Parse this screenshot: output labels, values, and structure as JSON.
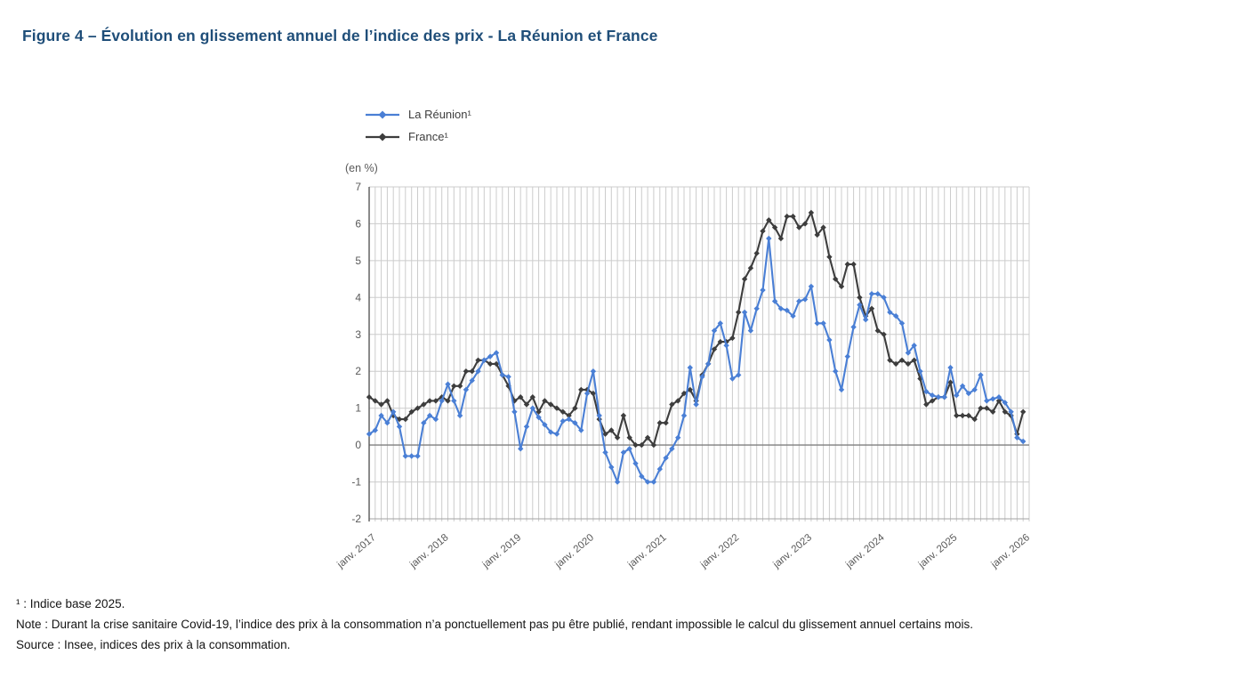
{
  "title": "Figure 4 – Évolution en glissement annuel de l’indice des prix - La Réunion et France",
  "unit_label": "(en %)",
  "legend": [
    {
      "label": "La Réunion¹",
      "color": "#4a7fd5"
    },
    {
      "label": "France¹",
      "color": "#3d3d3d"
    }
  ],
  "colors": {
    "title": "#1f4e79",
    "grid": "#cccccc",
    "zero_line": "#7f7f7f",
    "axis": "#595959",
    "tick_text": "#595959"
  },
  "footnotes": {
    "base": "¹ : Indice base 2025.",
    "note": "Note : Durant la crise sanitaire Covid-19, l’indice des prix à la consommation n’a ponctuellement pas pu être publié, rendant impossible le calcul du glissement annuel certains mois.",
    "source": "Source : Insee, indices des prix à la consommation."
  },
  "chart_data": {
    "type": "line",
    "title": "Évolution en glissement annuel de l'indice des prix - La Réunion et France",
    "ylabel": "(en %)",
    "ylim": [
      -2,
      7
    ],
    "yticks": [
      7,
      6,
      5,
      4,
      3,
      2,
      1,
      0,
      -1,
      -2
    ],
    "x_start": "janv. 2017",
    "x_end": "janv. 2026",
    "frequency": "monthly",
    "grid": "vertical line every month, horizontal line every 1 point, zero line emphasized",
    "legend_position": "top-left above plot",
    "marker": "diamond",
    "xtick_labels": [
      "janv. 2017",
      "janv. 2018",
      "janv. 2019",
      "janv. 2020",
      "janv. 2021",
      "janv. 2022",
      "janv. 2023",
      "janv. 2024",
      "janv. 2025",
      "janv. 2026"
    ],
    "series": [
      {
        "name": "La Réunion¹",
        "color": "#4a7fd5",
        "values": [
          0.3,
          0.4,
          0.8,
          0.6,
          0.9,
          0.5,
          -0.3,
          -0.3,
          -0.3,
          0.6,
          0.8,
          0.7,
          1.2,
          1.65,
          1.2,
          0.8,
          1.5,
          1.75,
          2.0,
          2.3,
          2.4,
          2.5,
          1.9,
          1.85,
          0.9,
          -0.1,
          0.5,
          1.0,
          0.75,
          0.55,
          0.35,
          0.3,
          0.65,
          0.7,
          0.6,
          0.4,
          1.4,
          2.0,
          0.8,
          -0.2,
          -0.6,
          -1.0,
          -0.2,
          -0.1,
          -0.5,
          -0.85,
          -1.0,
          -1.0,
          -0.65,
          -0.35,
          -0.1,
          0.2,
          0.8,
          2.1,
          1.1,
          1.85,
          2.2,
          3.1,
          3.3,
          2.7,
          1.8,
          1.9,
          3.6,
          3.1,
          3.7,
          4.2,
          5.6,
          3.9,
          3.7,
          3.65,
          3.5,
          3.9,
          3.95,
          4.3,
          3.3,
          3.3,
          2.85,
          2.0,
          1.5,
          2.4,
          3.2,
          3.8,
          3.4,
          4.1,
          4.1,
          4.0,
          3.6,
          3.5,
          3.3,
          2.5,
          2.7,
          2.0,
          1.45,
          1.35,
          1.3,
          1.3,
          2.1,
          1.35,
          1.6,
          1.4,
          1.5,
          1.9,
          1.2,
          1.25,
          1.3,
          1.15,
          0.9,
          0.2,
          0.1
        ]
      },
      {
        "name": "France¹",
        "color": "#3d3d3d",
        "values": [
          1.3,
          1.2,
          1.1,
          1.2,
          0.8,
          0.7,
          0.7,
          0.9,
          1.0,
          1.1,
          1.2,
          1.2,
          1.3,
          1.2,
          1.6,
          1.6,
          2.0,
          2.0,
          2.3,
          2.3,
          2.2,
          2.2,
          1.9,
          1.6,
          1.2,
          1.3,
          1.1,
          1.3,
          0.9,
          1.2,
          1.1,
          1.0,
          0.9,
          0.8,
          1.0,
          1.5,
          1.5,
          1.4,
          0.7,
          0.3,
          0.4,
          0.2,
          0.8,
          0.2,
          0.0,
          0.0,
          0.2,
          0.0,
          0.6,
          0.6,
          1.1,
          1.2,
          1.4,
          1.5,
          1.2,
          1.9,
          2.2,
          2.6,
          2.8,
          2.8,
          2.9,
          3.6,
          4.5,
          4.8,
          5.2,
          5.8,
          6.1,
          5.9,
          5.6,
          6.2,
          6.2,
          5.9,
          6.0,
          6.3,
          5.7,
          5.9,
          5.1,
          4.5,
          4.3,
          4.9,
          4.9,
          4.0,
          3.5,
          3.7,
          3.1,
          3.0,
          2.3,
          2.2,
          2.3,
          2.2,
          2.3,
          1.8,
          1.1,
          1.2,
          1.3,
          1.3,
          1.7,
          0.8,
          0.8,
          0.8,
          0.7,
          1.0,
          1.0,
          0.9,
          1.2,
          0.9,
          0.8,
          0.3,
          0.9
        ]
      }
    ]
  }
}
